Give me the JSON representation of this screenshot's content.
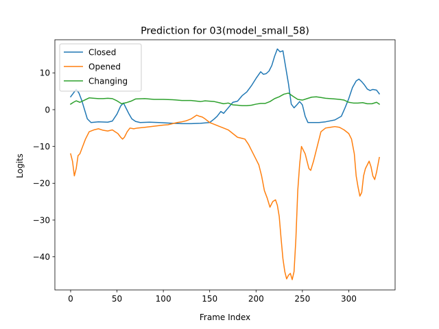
{
  "chart_data": {
    "type": "line",
    "title": "Prediction for 03(model_small_58)",
    "xlabel": "Frame Index",
    "ylabel": "Logits",
    "xlim": [
      -17,
      350
    ],
    "ylim": [
      -49,
      19
    ],
    "xticks": [
      0,
      50,
      100,
      150,
      200,
      250,
      300
    ],
    "yticks": [
      -40,
      -30,
      -20,
      -10,
      0,
      10
    ],
    "xtick_labels": [
      "0",
      "50",
      "100",
      "150",
      "200",
      "250",
      "300"
    ],
    "ytick_labels": [
      "−40",
      "−30",
      "−20",
      "−10",
      "0",
      "10"
    ],
    "grid": false,
    "legend_position": "top-left",
    "series": [
      {
        "name": "Closed",
        "color": "#1f77b4",
        "x": [
          0,
          3,
          6,
          9,
          12,
          15,
          18,
          22,
          30,
          40,
          45,
          50,
          54,
          57,
          60,
          63,
          66,
          70,
          75,
          85,
          95,
          110,
          120,
          130,
          140,
          150,
          155,
          158,
          162,
          165,
          170,
          175,
          180,
          185,
          190,
          195,
          200,
          205,
          208,
          211,
          214,
          217,
          220,
          223,
          226,
          229,
          232,
          235,
          238,
          241,
          244,
          247,
          250,
          253,
          256,
          258,
          261,
          264,
          268,
          275,
          285,
          292,
          296,
          300,
          304,
          308,
          311,
          314,
          317,
          320,
          323,
          326,
          330,
          333
        ],
        "y": [
          3.5,
          4.5,
          5.5,
          4.5,
          2.5,
          0,
          -2.5,
          -3.5,
          -3.3,
          -3.4,
          -3.1,
          -1.2,
          1,
          1.8,
          0.3,
          -1.2,
          -2.5,
          -3.2,
          -3.5,
          -3.4,
          -3.5,
          -3.7,
          -3.8,
          -3.8,
          -3.7,
          -3.5,
          -2.5,
          -1.8,
          -0.5,
          -1,
          0.5,
          2,
          2.3,
          3.8,
          4.8,
          6.5,
          8.5,
          10.3,
          9.6,
          9.8,
          10.5,
          12,
          14.5,
          16.5,
          15.7,
          16,
          11.5,
          7,
          1.5,
          0.5,
          1.3,
          2.2,
          1.3,
          -1.8,
          -3.5,
          -3.5,
          -3.5,
          -3.5,
          -3.5,
          -3.3,
          -2.8,
          -1.8,
          0.5,
          3,
          6,
          7.8,
          8.3,
          7.6,
          6.7,
          5.6,
          5.2,
          5.5,
          5.3,
          4.3
        ]
      },
      {
        "name": "Opened",
        "color": "#ff7f0e",
        "x": [
          0,
          2,
          4,
          6,
          8,
          10,
          13,
          16,
          20,
          25,
          30,
          35,
          40,
          45,
          48,
          51,
          54,
          56,
          58,
          61,
          64,
          68,
          72,
          80,
          90,
          100,
          105,
          110,
          115,
          120,
          125,
          130,
          133,
          136,
          139,
          142,
          145,
          150,
          155,
          160,
          165,
          170,
          175,
          180,
          185,
          188,
          192,
          195,
          198,
          200,
          203,
          206,
          209,
          212,
          215,
          218,
          221,
          223,
          225,
          227,
          229,
          231,
          233,
          235,
          237,
          239,
          241,
          243,
          245,
          247,
          249,
          251,
          253,
          255,
          257,
          259,
          262,
          265,
          270,
          275,
          280,
          285,
          290,
          295,
          300,
          303,
          306,
          308,
          310,
          312,
          314,
          316,
          318,
          320,
          322,
          324,
          326,
          328,
          330,
          333
        ],
        "y": [
          -12,
          -14,
          -18,
          -16,
          -12.5,
          -12,
          -10,
          -8,
          -6,
          -5.5,
          -5.2,
          -5.6,
          -5.8,
          -5.5,
          -6,
          -6.5,
          -7.5,
          -8,
          -7.5,
          -6,
          -5,
          -5.2,
          -5,
          -4.8,
          -4.5,
          -4.2,
          -4.1,
          -3.8,
          -3.5,
          -3.3,
          -3,
          -2.5,
          -2,
          -1.5,
          -1.8,
          -2,
          -2.5,
          -3.5,
          -4,
          -4.5,
          -5,
          -5.5,
          -6.5,
          -7.5,
          -7.8,
          -8,
          -9.5,
          -11,
          -12.5,
          -13.5,
          -15,
          -18,
          -22,
          -24,
          -26.5,
          -25,
          -24.5,
          -26,
          -29,
          -35,
          -40.5,
          -44,
          -46,
          -45,
          -44.5,
          -46.2,
          -44,
          -35,
          -22,
          -15,
          -10,
          -11,
          -12,
          -14,
          -16,
          -16.5,
          -14,
          -11,
          -6,
          -5,
          -4.8,
          -4.6,
          -4.8,
          -5.5,
          -6.5,
          -8,
          -12,
          -18,
          -21,
          -23.5,
          -22.5,
          -18,
          -16,
          -15,
          -14,
          -15.5,
          -18,
          -19,
          -17,
          -13
        ]
      },
      {
        "name": "Changing",
        "color": "#2ca02c",
        "x": [
          0,
          3,
          6,
          10,
          15,
          20,
          25,
          30,
          35,
          40,
          45,
          50,
          55,
          60,
          65,
          70,
          80,
          90,
          100,
          110,
          120,
          130,
          140,
          145,
          150,
          155,
          160,
          165,
          170,
          175,
          180,
          185,
          190,
          195,
          200,
          205,
          210,
          215,
          220,
          225,
          230,
          235,
          240,
          245,
          250,
          255,
          260,
          265,
          270,
          275,
          280,
          285,
          290,
          295,
          300,
          305,
          310,
          315,
          320,
          325,
          330,
          333
        ],
        "y": [
          1.5,
          2,
          2.4,
          2,
          2.6,
          3.2,
          3.1,
          3,
          3,
          3.1,
          3,
          2.4,
          1.6,
          1.9,
          2.3,
          2.9,
          3,
          2.8,
          2.8,
          2.7,
          2.5,
          2.5,
          2.2,
          2.4,
          2.3,
          2.2,
          1.9,
          1.6,
          1.8,
          1.3,
          1.2,
          1.1,
          1.1,
          1.2,
          1.5,
          1.7,
          1.7,
          2.2,
          3,
          3.5,
          4.2,
          4.5,
          3.6,
          2.8,
          2.6,
          3,
          3.4,
          3.5,
          3.3,
          3.1,
          3,
          2.9,
          2.8,
          2.6,
          2,
          1.8,
          1.8,
          1.9,
          1.6,
          1.6,
          2,
          1.5
        ]
      }
    ]
  }
}
